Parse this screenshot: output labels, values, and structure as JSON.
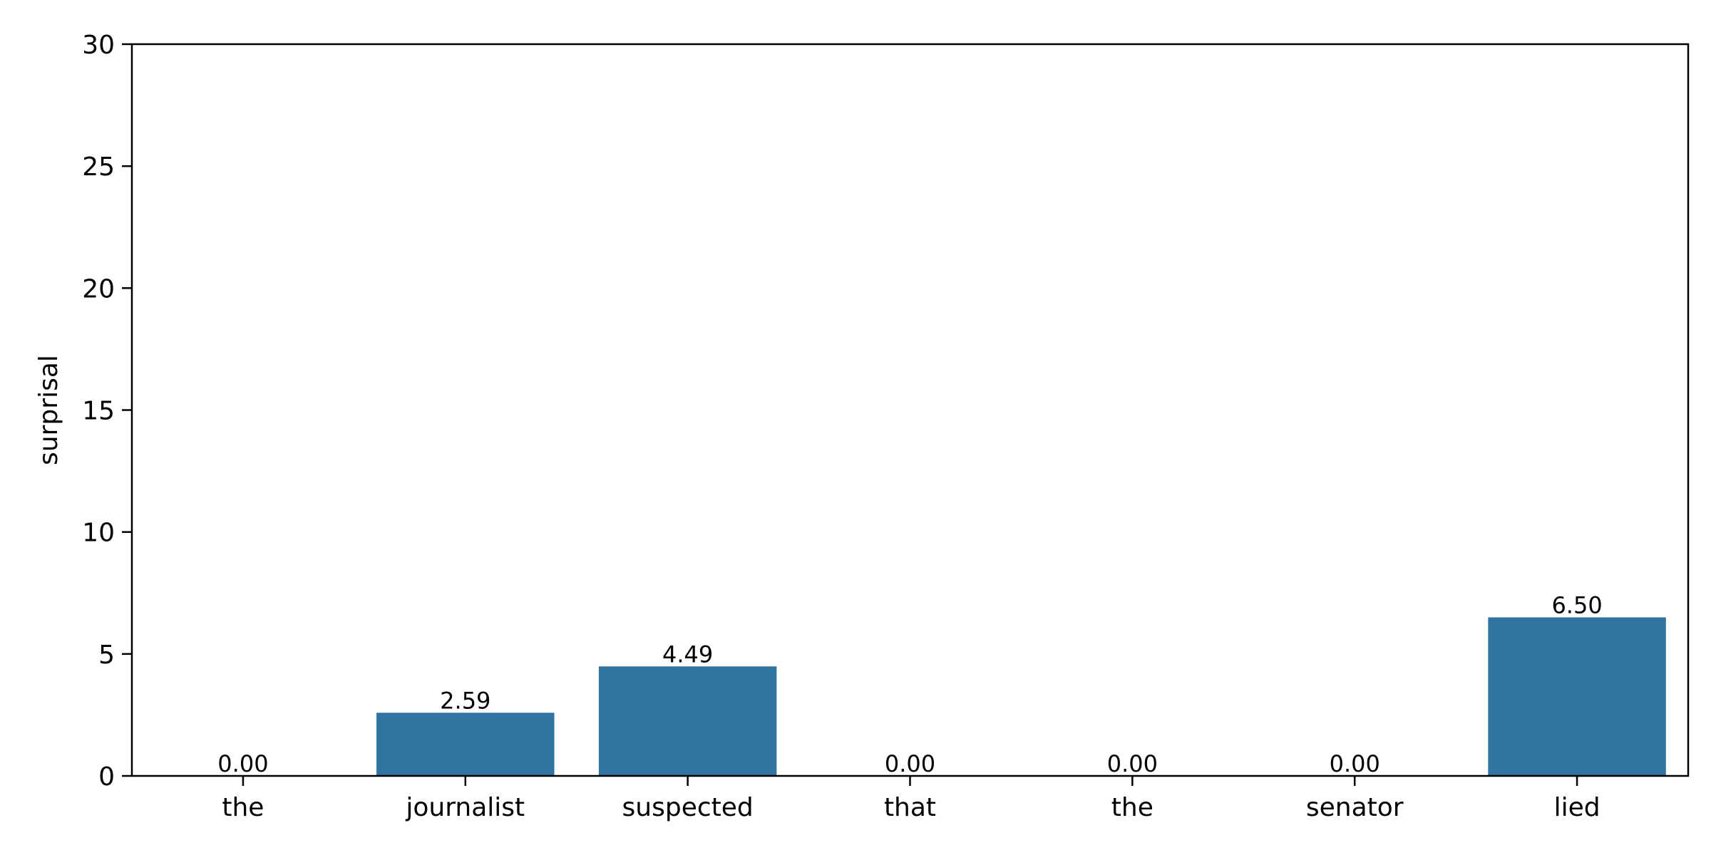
{
  "chart_data": {
    "type": "bar",
    "categories": [
      "the",
      "journalist",
      "suspected",
      "that",
      "the",
      "senator",
      "lied"
    ],
    "values": [
      0.0,
      2.59,
      4.49,
      0.0,
      0.0,
      0.0,
      6.5
    ],
    "value_labels": [
      "0.00",
      "2.59",
      "4.49",
      "0.00",
      "0.00",
      "0.00",
      "6.50"
    ],
    "title": "",
    "xlabel": "",
    "ylabel": "surprisal",
    "ylim": [
      0,
      30
    ],
    "yticks": [
      0,
      5,
      10,
      15,
      20,
      25,
      30
    ],
    "grid": false,
    "bar_color": "#3274a1"
  }
}
